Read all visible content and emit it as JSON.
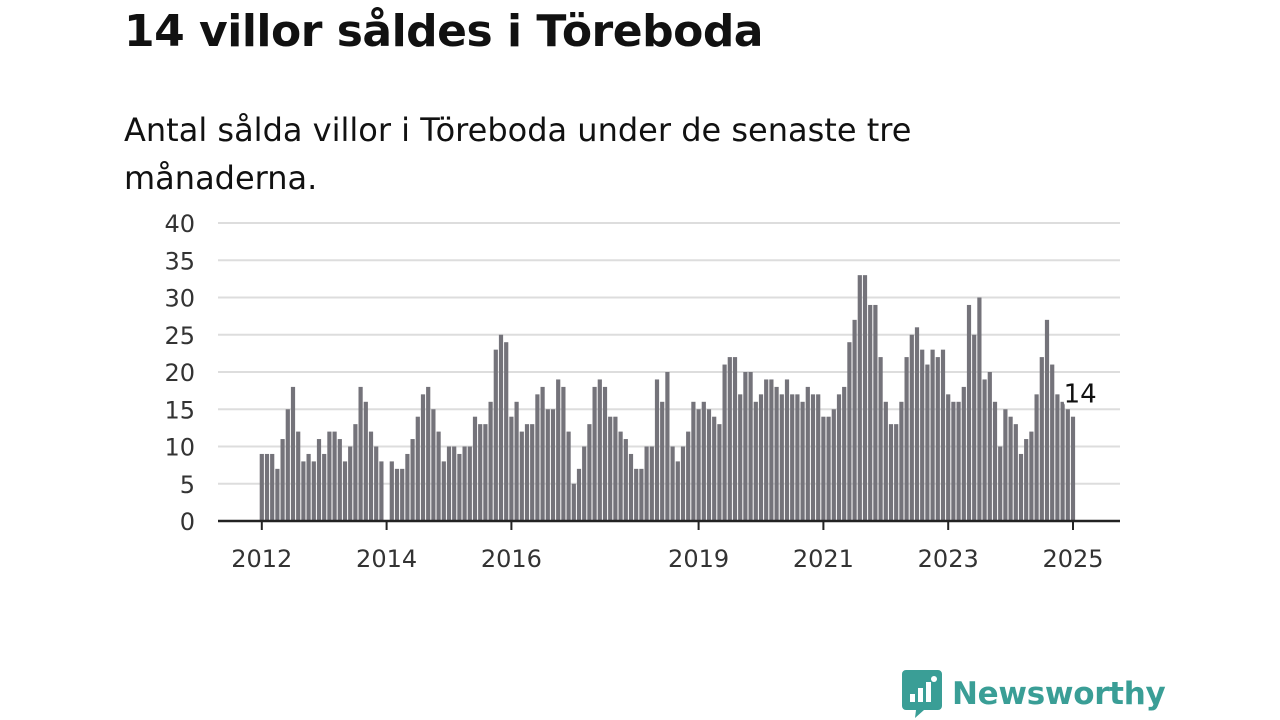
{
  "header": {
    "title": "14 villor såldes i Töreboda",
    "subtitle": "Antal sålda villor i Töreboda under de senaste tre månaderna."
  },
  "brand": {
    "name": "Newsworthy",
    "icon": "newsworthy-logo-icon",
    "color": "#3a9e96"
  },
  "colors": {
    "bar": "#74737a",
    "highlight": "#1a9e91",
    "grid": "#dddddd",
    "axis": "#222222"
  },
  "chart_data": {
    "type": "bar",
    "title": "",
    "xlabel": "",
    "ylabel": "",
    "ylim": [
      0,
      40
    ],
    "yticks": [
      0,
      5,
      10,
      15,
      20,
      25,
      30,
      35,
      40
    ],
    "grid": true,
    "x_start": "2012-01",
    "x_end": "2025-02",
    "xticks": [
      {
        "label": "2012",
        "date": "2012-01"
      },
      {
        "label": "2014",
        "date": "2014-01"
      },
      {
        "label": "2016",
        "date": "2016-01"
      },
      {
        "label": "2019",
        "date": "2019-01"
      },
      {
        "label": "2021",
        "date": "2021-01"
      },
      {
        "label": "2023",
        "date": "2023-01"
      },
      {
        "label": "2025",
        "date": "2025-01"
      }
    ],
    "series": [
      {
        "values": [
          9,
          9,
          9,
          7,
          11,
          15,
          18,
          12,
          8,
          9,
          8,
          11,
          9,
          12,
          12,
          11,
          8,
          10,
          13,
          18,
          16,
          12,
          10,
          8,
          0,
          8,
          7,
          7,
          9,
          11,
          14,
          17,
          18,
          15,
          12,
          8,
          10,
          10,
          9,
          10,
          10,
          14,
          13,
          13,
          16,
          23,
          25,
          24,
          14,
          16,
          12,
          13,
          13,
          17,
          18,
          15,
          15,
          19,
          18,
          12,
          5,
          7,
          10,
          13,
          18,
          19,
          18,
          14,
          14,
          12,
          11,
          9,
          7,
          7,
          10,
          10,
          19,
          16,
          20,
          10,
          8,
          10,
          12,
          16,
          15,
          16,
          15,
          14,
          13,
          21,
          22,
          22,
          17,
          20,
          20,
          16,
          17,
          19,
          19,
          18,
          17,
          19,
          17,
          17,
          16,
          18,
          17,
          17,
          14,
          14,
          15,
          17,
          18,
          24,
          27,
          33,
          33,
          29,
          29,
          22,
          16,
          13,
          13,
          16,
          22,
          25,
          26,
          23,
          21,
          23,
          22,
          23,
          17,
          16,
          16,
          18,
          29,
          25,
          30,
          19,
          20,
          16,
          10,
          15,
          14,
          13,
          9,
          11,
          12,
          17,
          22,
          27,
          21,
          17,
          16,
          15,
          14
        ]
      }
    ],
    "highlight": {
      "date": "2025-02",
      "value": 14,
      "label": "14"
    }
  }
}
